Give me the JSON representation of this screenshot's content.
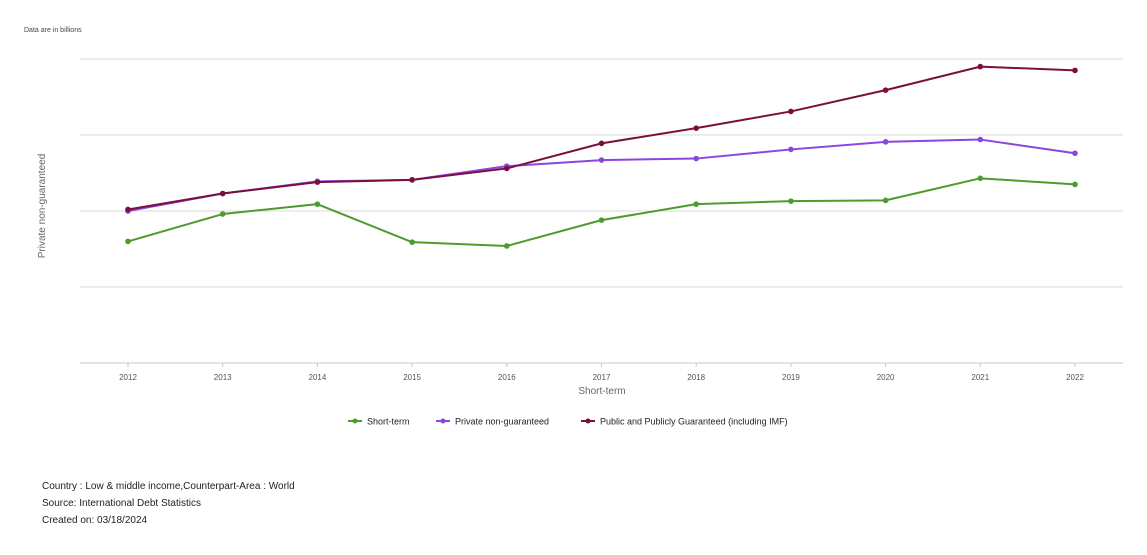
{
  "unit_note": "Data are in  billions",
  "chart_data": {
    "type": "line",
    "xlabel": "Short-term",
    "ylabel": "Private non-guaranteed",
    "categories": [
      "2012",
      "2013",
      "2014",
      "2015",
      "2016",
      "2017",
      "2018",
      "2019",
      "2020",
      "2021",
      "2022"
    ],
    "ylim": [
      0,
      4
    ],
    "gridlines": [
      1,
      2,
      3,
      4
    ],
    "grid": true,
    "legend_position": "bottom",
    "series": [
      {
        "name": "Short-term",
        "color": "#4e9a2f",
        "values": [
          1.6,
          1.96,
          2.09,
          1.59,
          1.54,
          1.88,
          2.09,
          2.13,
          2.14,
          2.43,
          2.35
        ]
      },
      {
        "name": "Private non-guaranteed",
        "color": "#8b45e0",
        "values": [
          2.0,
          2.23,
          2.39,
          2.41,
          2.59,
          2.67,
          2.69,
          2.81,
          2.91,
          2.94,
          2.76
        ]
      },
      {
        "name": "Public and Publicly Guaranteed (including IMF)",
        "color": "#7a0f3e",
        "values": [
          2.02,
          2.23,
          2.38,
          2.41,
          2.56,
          2.89,
          3.09,
          3.31,
          3.59,
          3.9,
          3.85
        ]
      }
    ]
  },
  "footer": {
    "country": "Country : Low & middle income,Counterpart-Area : World",
    "source": "Source: International Debt Statistics",
    "created": "Created on: 03/18/2024"
  }
}
